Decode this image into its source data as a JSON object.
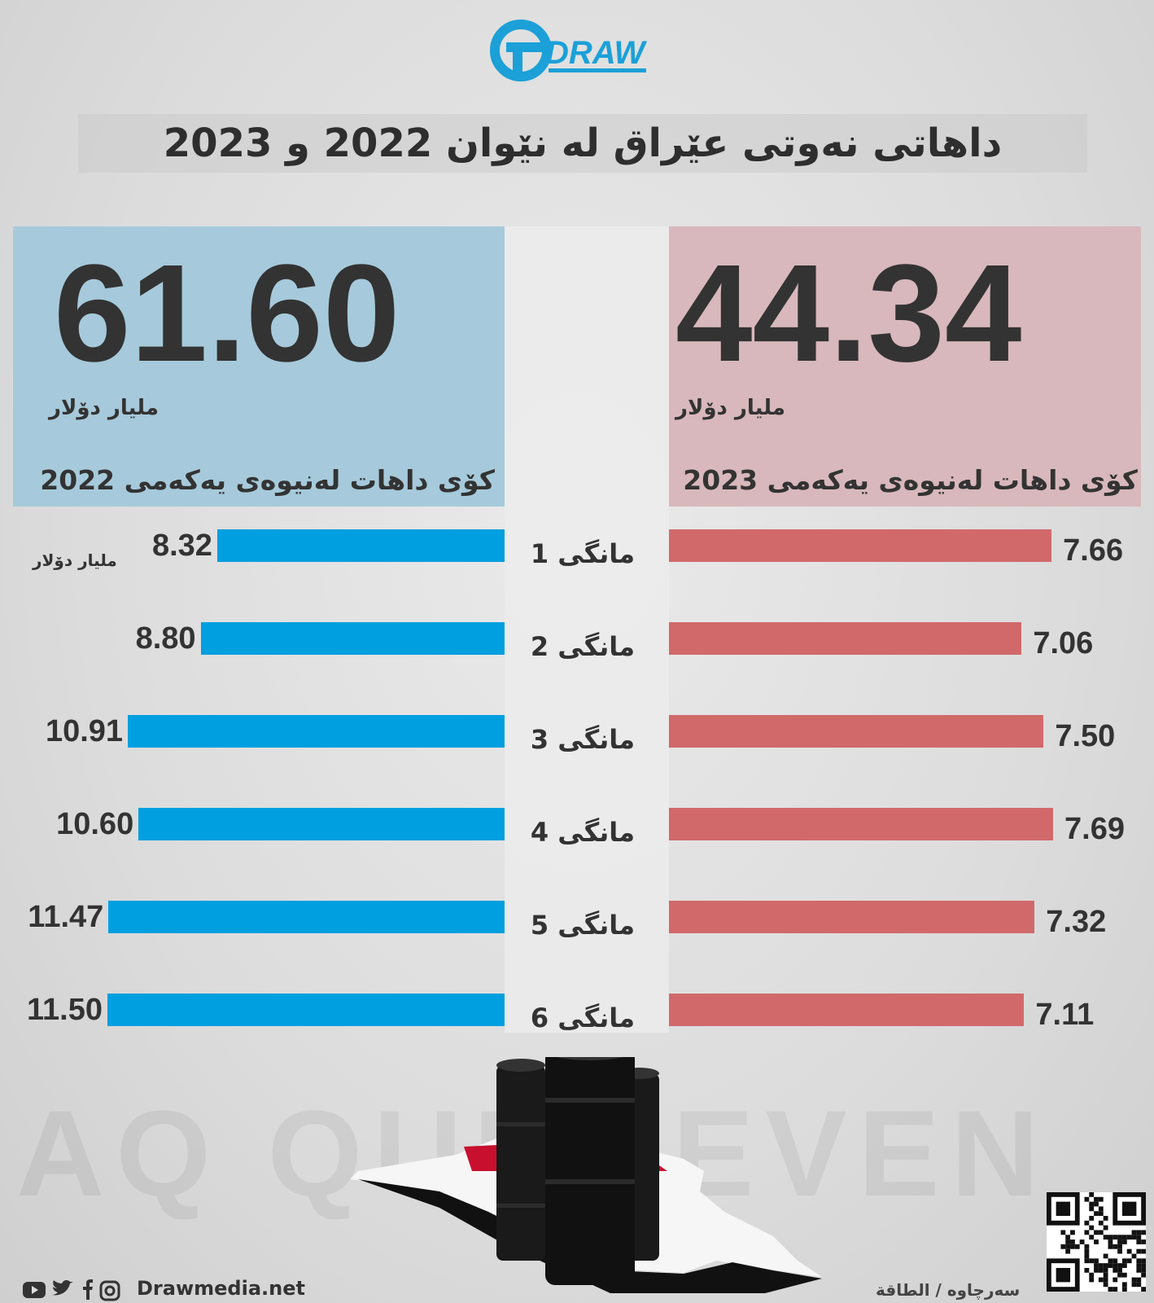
{
  "brand": {
    "logo_text": "DRAW",
    "website": "Drawmedia.net"
  },
  "title": "داهاتی نەوتی عێراق لە نێوان 2022 و 2023",
  "totals": {
    "y2022": {
      "value": "61.60",
      "unit": "ملیار دۆلار",
      "caption": "کۆی داهات لەنیوەی یەکەمی 2022",
      "color": "#a6cadb"
    },
    "y2023": {
      "value": "44.34",
      "unit": "ملیار دۆلار",
      "caption": "کۆی داهات لەنیوەی یەکەمی 2023",
      "color": "#d8b8bc"
    }
  },
  "chart_data": {
    "type": "bar",
    "orientation": "horizontal",
    "categories": [
      "مانگی 1",
      "مانگی 2",
      "مانگی 3",
      "مانگی 4",
      "مانگی 5",
      "مانگی 6"
    ],
    "series": [
      {
        "values": [
          8.32,
          8.8,
          10.91,
          10.6,
          11.47,
          11.5
        ],
        "labels": [
          "8.32",
          "8.80",
          "10.91",
          "10.60",
          "11.47",
          "11.50"
        ],
        "color": "#009fdf"
      },
      {
        "values": [
          7.66,
          7.06,
          7.5,
          7.69,
          7.32,
          7.11
        ],
        "labels": [
          "7.66",
          "7.06",
          "7.50",
          "7.69",
          "7.32",
          "7.11"
        ],
        "color": "#d1696b"
      }
    ],
    "unit_label": "ملیار دۆلار"
  },
  "watermark": "AQ QURBEVEN",
  "source": "سەرچاوە / الطاقة",
  "icons": [
    "youtube-icon",
    "twitter-icon",
    "facebook-icon",
    "instagram-icon",
    "qr-code-icon",
    "oil-barrels-icon",
    "iraq-map-flag-icon"
  ]
}
